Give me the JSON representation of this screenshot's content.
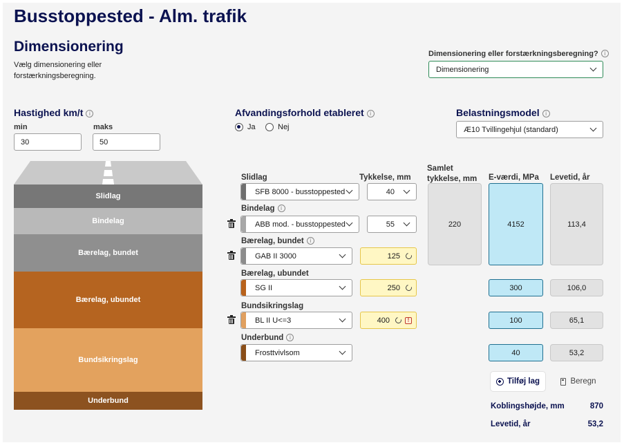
{
  "page_title": "Busstoppested - Alm. trafik",
  "section_title": "Dimensionering",
  "section_desc_line1": "Vælg dimensionering eller",
  "section_desc_line2": "forstærkningsberegning.",
  "mode": {
    "label": "Dimensionering eller forstærkningsberegning?",
    "value": "Dimensionering"
  },
  "speed": {
    "label": "Hastighed km/t",
    "min_label": "min",
    "max_label": "maks",
    "min": "30",
    "max": "50"
  },
  "drainage": {
    "label": "Afvandingsforhold etableret",
    "yes": "Ja",
    "no": "Nej",
    "selected": "Ja"
  },
  "load_model": {
    "label": "Belastningsmodel",
    "value": "Æ10 Tvillingehjul (standard)"
  },
  "columns": {
    "thickness": "Tykkelse, mm",
    "total_line1": "Samlet",
    "total_line2": "tykkelse, mm",
    "evalue": "E-værdi, MPa",
    "lifetime": "Levetid, år"
  },
  "layers": [
    {
      "name": "Slidlag",
      "material": "SFB 8000 - busstoppested",
      "thickness": "40",
      "color": "#6f6f6f"
    },
    {
      "name": "Bindelag",
      "material": "ABB mod. - busstoppested",
      "thickness": "55",
      "color": "#a8a8a8"
    },
    {
      "name": "Bærelag, bundet",
      "material": "GAB II 3000",
      "thickness": "125",
      "color": "#8c8c8c"
    },
    {
      "name": "Bærelag, ubundet",
      "material": "SG II",
      "thickness": "250",
      "color": "#b8621b",
      "evalue": "300",
      "lifetime": "106,0"
    },
    {
      "name": "Bundsikringslag",
      "material": "BL II U<=3",
      "thickness": "400",
      "color": "#e0a060",
      "evalue": "100",
      "lifetime": "65,1"
    },
    {
      "name": "Underbund",
      "material": "Frosttvivlsom",
      "color": "#8a4e18",
      "evalue": "40",
      "lifetime": "53,2"
    }
  ],
  "bound_summary": {
    "total_thickness": "220",
    "evalue": "4152",
    "lifetime": "113,4"
  },
  "diagram": {
    "labels": [
      "Slidlag",
      "Bindelag",
      "Bærelag, bundet",
      "Bærelag, ubundet",
      "Bundsikringslag",
      "Underbund"
    ]
  },
  "buttons": {
    "add_layer": "Tilføj lag",
    "calculate": "Beregn"
  },
  "results": {
    "coupling_label": "Koblingshøjde, mm",
    "coupling_value": "870",
    "lifetime_label": "Levetid, år",
    "lifetime_value": "53,2"
  }
}
